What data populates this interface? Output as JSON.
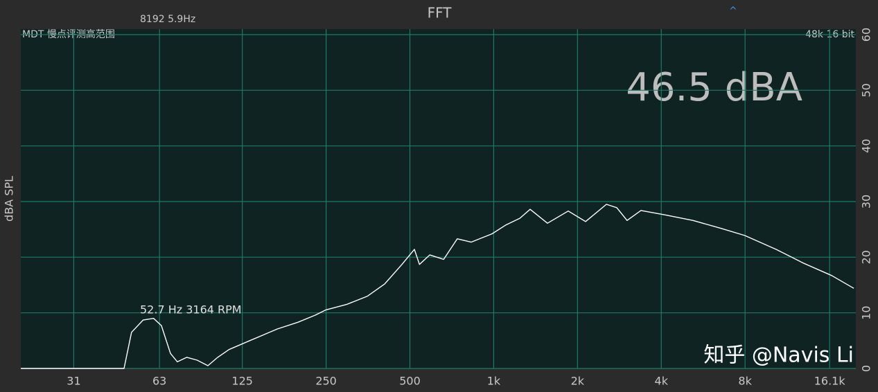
{
  "chart_data": {
    "type": "line",
    "title": "FFT",
    "header_left": "8192  5.9Hz",
    "header_right": "^",
    "subtitle_left": "MDT 慢点评测高范围",
    "subtitle_right": "48k 16 bit",
    "level_readout": "46.5 dBA",
    "peak_annotation": "52.7 Hz 3164 RPM",
    "watermark": "知乎 @Navis Li",
    "y_label": "dBA SPL",
    "log_x": true,
    "grid": true,
    "xlim": [
      20,
      20000
    ],
    "xticks": [
      31,
      63,
      125,
      250,
      500,
      {
        "value": 1000,
        "label": "1k"
      },
      {
        "value": 2000,
        "label": "2k"
      },
      {
        "value": 4000,
        "label": "4k"
      },
      {
        "value": 8000,
        "label": "8k"
      },
      {
        "value": 16100,
        "label": "16.1k"
      }
    ],
    "ylim": [
      0,
      60
    ],
    "yticks": [
      0,
      10,
      20,
      30,
      40,
      50,
      60
    ],
    "series": [
      {
        "color": "#ffffff",
        "x": [
          20,
          47,
          50,
          55,
          60,
          64,
          69,
          73,
          79,
          86,
          94,
          102,
          112,
          133,
          167,
          198,
          229,
          249,
          296,
          352,
          406,
          468,
          519,
          541,
          589,
          661,
          740,
          830,
          986,
          1107,
          1242,
          1352,
          1560,
          1853,
          2138,
          2541,
          2767,
          3014,
          3381,
          4131,
          5200,
          6537,
          7980,
          10350,
          13010,
          16370,
          19670
        ],
        "values": [
          0,
          0,
          6.5,
          8.7,
          9.0,
          7.7,
          2.7,
          1.2,
          2.0,
          1.5,
          0.5,
          2.0,
          3.4,
          5.0,
          7.1,
          8.3,
          9.6,
          10.5,
          11.5,
          13,
          15.2,
          18.7,
          21.4,
          18.7,
          20.4,
          19.6,
          23.3,
          22.7,
          24.2,
          25.8,
          27,
          28.6,
          26.1,
          28.3,
          26.4,
          29.5,
          28.9,
          26.6,
          28.4,
          27.6,
          26.6,
          25.2,
          23.9,
          21.4,
          18.9,
          16.7,
          14.4
        ]
      }
    ]
  }
}
